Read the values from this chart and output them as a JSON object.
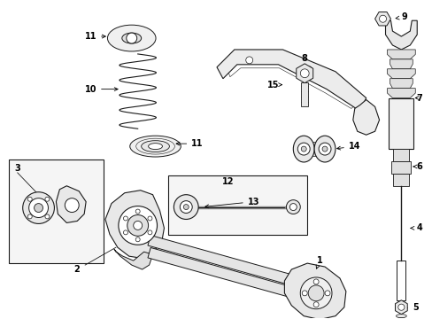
{
  "background_color": "#ffffff",
  "line_color": "#1a1a1a",
  "fig_width": 4.89,
  "fig_height": 3.6,
  "dpi": 100
}
